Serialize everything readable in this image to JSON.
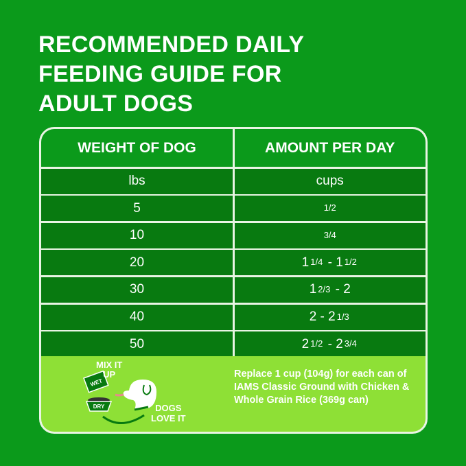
{
  "title_lines": [
    "RECOMMENDED DAILY",
    "FEEDING GUIDE FOR",
    "ADULT DOGS"
  ],
  "table": {
    "headers": [
      "WEIGHT OF DOG",
      "AMOUNT PER DAY"
    ],
    "units": [
      "lbs",
      "cups"
    ],
    "rows": [
      {
        "weight": "5",
        "amount": [
          "1/2"
        ]
      },
      {
        "weight": "10",
        "amount": [
          "3/4"
        ]
      },
      {
        "weight": "20",
        "amount": [
          "1",
          "1/4",
          " - 1",
          "1/2"
        ]
      },
      {
        "weight": "30",
        "amount": [
          "1",
          "2/3",
          " - 2"
        ]
      },
      {
        "weight": "40",
        "amount": [
          "2 - 2",
          "1/3"
        ]
      },
      {
        "weight": "50",
        "amount": [
          "2",
          "1/2",
          " - 2",
          "3/4"
        ]
      }
    ]
  },
  "promo": {
    "mix_line1": "MIX IT",
    "mix_line2": "UP",
    "wet_label": "WET",
    "dry_label": "DRY",
    "love_line1": "DOGS",
    "love_line2": "LOVE IT",
    "note": "Replace 1 cup (104g) for each can of IAMS Classic Ground with Chicken & Whole Grain Rice (369g can)"
  },
  "colors": {
    "background": "#0b9a1b",
    "cell": "#087a10",
    "band": "#8ee036",
    "border": "#e9f5e4"
  }
}
